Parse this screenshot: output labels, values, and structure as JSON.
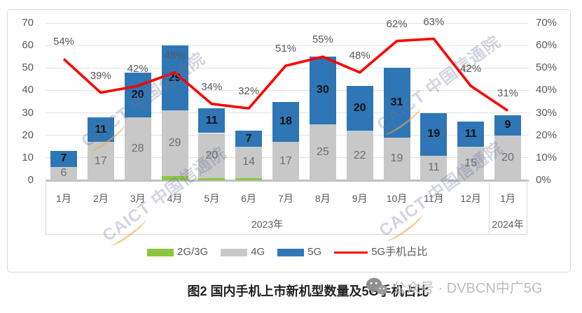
{
  "chart_data": {
    "type": "combo_stacked_bar_line",
    "categories": [
      "1月",
      "2月",
      "3月",
      "4月",
      "5月",
      "6月",
      "7月",
      "8月",
      "9月",
      "10月",
      "11月",
      "12月",
      "1月"
    ],
    "category_groups": [
      {
        "label": "2023年",
        "start": 0,
        "end": 11
      },
      {
        "label": "2024年",
        "start": 12,
        "end": 12
      }
    ],
    "bar_series": [
      {
        "name": "2G/3G",
        "color": "#8CC63E",
        "values": [
          0,
          0,
          0,
          2,
          1,
          1,
          0,
          0,
          0,
          0,
          0,
          0,
          0
        ],
        "labels_visible": false
      },
      {
        "name": "4G",
        "color": "#c8c8c8",
        "label_color": "#6e6e6e",
        "labels_visible": true,
        "values": [
          6,
          17,
          28,
          29,
          20,
          14,
          17,
          25,
          22,
          19,
          11,
          15,
          20
        ]
      },
      {
        "name": "5G",
        "color": "#2E76B5",
        "label_color": "#111111",
        "labels_visible": true,
        "labels_bold": true,
        "values": [
          7,
          11,
          20,
          29,
          11,
          7,
          18,
          30,
          20,
          31,
          19,
          11,
          9
        ]
      }
    ],
    "line_series": {
      "name": "5G手机占比",
      "color": "#FE0000",
      "values": [
        54,
        39,
        42,
        48,
        34,
        32,
        51,
        55,
        48,
        62,
        63,
        42,
        31
      ],
      "labels": [
        "54%",
        "39%",
        "42%",
        "48%",
        "34%",
        "32%",
        "51%",
        "55%",
        "48%",
        "62%",
        "63%",
        "42%",
        "31%"
      ]
    },
    "left_axis": {
      "min": 0,
      "max": 70,
      "step": 10,
      "ticks": [
        "0",
        "10",
        "20",
        "30",
        "40",
        "50",
        "60",
        "70"
      ]
    },
    "right_axis": {
      "min": 0,
      "max": 70,
      "step": 10,
      "ticks": [
        "0%",
        "10%",
        "20%",
        "30%",
        "40%",
        "50%",
        "60%",
        "70%"
      ]
    },
    "grid": true,
    "legend_position": "bottom_inside_frame"
  },
  "legend": {
    "items": [
      {
        "label": "2G/3G",
        "type": "swatch",
        "color": "#8CC63E"
      },
      {
        "label": "4G",
        "type": "swatch",
        "color": "#c8c8c8"
      },
      {
        "label": "5G",
        "type": "swatch",
        "color": "#2E76B5"
      },
      {
        "label": "5G手机占比",
        "type": "line",
        "color": "#FE0000"
      }
    ]
  },
  "caption": "图2  国内手机上市新机型数量及5G手机占比",
  "watermarks": {
    "caict": "CAICT 中国信通院",
    "wechat": "公众号 · DVBCN中广5G"
  }
}
